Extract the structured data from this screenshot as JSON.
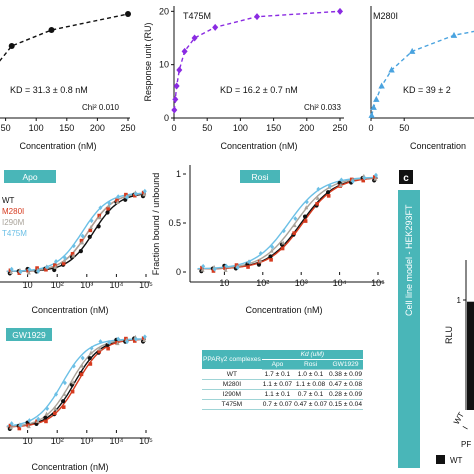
{
  "panel_c": {
    "label": "c",
    "cell_line_title": "Cell line model - HEK293FT",
    "rlu_label": "RLU",
    "tick_y": "1",
    "x_tick_a": "WT",
    "x_tick_b": "I",
    "bottom_text": "PF",
    "legend_wt": "WT"
  },
  "kd_table": {
    "header_complex": "PPARγ2 complexes",
    "header_kd": "Kd (uM)",
    "col_apo": "Apo",
    "col_rosi": "Rosi",
    "col_gw": "GW1929",
    "rows": [
      {
        "name": "WT",
        "apo": "1.7 ± 0.1",
        "rosi": "1.0 ± 0.1",
        "gw": "0.38 ± 0.09"
      },
      {
        "name": "M280I",
        "apo": "1.1 ± 0.07",
        "rosi": "1.1 ± 0.08",
        "gw": "0.47 ± 0.08"
      },
      {
        "name": "I290M",
        "apo": "1.1 ± 0.1",
        "rosi": "0.7 ± 0.1",
        "gw": "0.28 ± 0.09"
      },
      {
        "name": "T475M",
        "apo": "0.7 ± 0.07",
        "rosi": "0.47 ± 0.07",
        "gw": "0.15 ± 0.04"
      }
    ]
  },
  "colors": {
    "teal": "#49b6b8",
    "wt": "#111111",
    "m280i": "#d63a1e",
    "i290m": "#a9a39a",
    "t475m": "#6cc0e6",
    "purple": "#8a2be2",
    "skyblue": "#4aa3df"
  },
  "chart_data": [
    {
      "type": "line",
      "panel": "top-left",
      "xlabel": "Concentration (nM)",
      "x_ticks": [
        0,
        50,
        100,
        150,
        200,
        250
      ],
      "xlim": [
        0,
        250
      ],
      "ylim": [
        0,
        21
      ],
      "annotation_kd": "KD = 31.3 ± 0.8 nM",
      "annotation_chi": "Chi² 0.010",
      "series": [
        {
          "x": [
            0,
            3,
            6,
            12,
            25,
            60,
            125,
            250
          ],
          "y": [
            0,
            1.5,
            3.5,
            5.5,
            8.5,
            13.5,
            16.5,
            19.5
          ]
        }
      ]
    },
    {
      "type": "line",
      "panel": "top-middle",
      "title": "T475M",
      "xlabel": "Concentration (nM)",
      "ylabel": "Response unit (RU)",
      "x_ticks": [
        0,
        50,
        100,
        150,
        200,
        250
      ],
      "y_ticks": [
        0,
        10,
        20
      ],
      "xlim": [
        0,
        250
      ],
      "ylim": [
        0,
        21
      ],
      "annotation_kd": "KD = 16.2 ± 0.7 nM",
      "annotation_chi": "Chi² 0.033",
      "series": [
        {
          "x": [
            0.5,
            2,
            4,
            8,
            16,
            31,
            62,
            125,
            250
          ],
          "y": [
            1.5,
            3.5,
            6.0,
            9.0,
            12.5,
            15.0,
            17.0,
            19.0,
            20.0
          ]
        }
      ]
    },
    {
      "type": "line",
      "panel": "top-right",
      "title": "M280I",
      "xlabel": "Concentration",
      "x_ticks": [
        0,
        50
      ],
      "xlim": [
        0,
        250
      ],
      "ylim": [
        0,
        21
      ],
      "annotation_kd": "KD = 39 ± 2",
      "series": [
        {
          "x": [
            1,
            4,
            8,
            16,
            31,
            62,
            125,
            250
          ],
          "y": [
            0.5,
            2.0,
            3.5,
            6.0,
            9.0,
            12.5,
            15.5,
            18.5
          ]
        }
      ]
    },
    {
      "type": "line",
      "panel": "apo",
      "title": "Apo",
      "xlabel": "Concentration (nM)",
      "x_scale": "log",
      "xlim": [
        1,
        100000
      ],
      "ylim": [
        0,
        1
      ],
      "x_tick_labels": [
        "10",
        "10²",
        "10³",
        "10⁴",
        "10⁵"
      ],
      "x_ticks": [
        10,
        100,
        1000,
        10000,
        100000
      ],
      "legend": [
        "WT",
        "M280I",
        "I290M",
        "T475M"
      ],
      "legend_placement": "upper-left",
      "series": [
        {
          "name": "WT",
          "kd": 1700
        },
        {
          "name": "M280I",
          "kd": 1100
        },
        {
          "name": "I290M",
          "kd": 1100
        },
        {
          "name": "T475M",
          "kd": 700
        }
      ]
    },
    {
      "type": "line",
      "panel": "rosi",
      "title": "Rosi",
      "xlabel": "Concentration (nM)",
      "ylabel": "Fraction bound / unbound",
      "x_scale": "log",
      "xlim": [
        1,
        100000
      ],
      "ylim": [
        0,
        1
      ],
      "y_ticks": [
        0,
        0.5,
        1
      ],
      "y_tick_labels": [
        "0",
        "0.5",
        "1"
      ],
      "x_tick_labels": [
        "10",
        "10²",
        "10³",
        "10⁴",
        "10⁵"
      ],
      "x_ticks": [
        10,
        100,
        1000,
        10000,
        100000
      ],
      "series": [
        {
          "name": "WT",
          "kd": 1000
        },
        {
          "name": "M280I",
          "kd": 1100
        },
        {
          "name": "I290M",
          "kd": 700
        },
        {
          "name": "T475M",
          "kd": 470
        }
      ]
    },
    {
      "type": "line",
      "panel": "gw1929",
      "title": "GW1929",
      "xlabel": "Concentration (nM)",
      "x_scale": "log",
      "xlim": [
        1,
        100000
      ],
      "ylim": [
        0,
        1
      ],
      "x_tick_labels": [
        "10",
        "10²",
        "10³",
        "10⁴",
        "10⁵"
      ],
      "x_ticks": [
        10,
        100,
        1000,
        10000,
        100000
      ],
      "series": [
        {
          "name": "WT",
          "kd": 380
        },
        {
          "name": "M280I",
          "kd": 470
        },
        {
          "name": "I290M",
          "kd": 280
        },
        {
          "name": "T475M",
          "kd": 150
        }
      ]
    },
    {
      "type": "bar",
      "panel": "c",
      "ylabel": "RLU",
      "categories": [
        "WT"
      ],
      "values": [
        0.95
      ]
    }
  ]
}
